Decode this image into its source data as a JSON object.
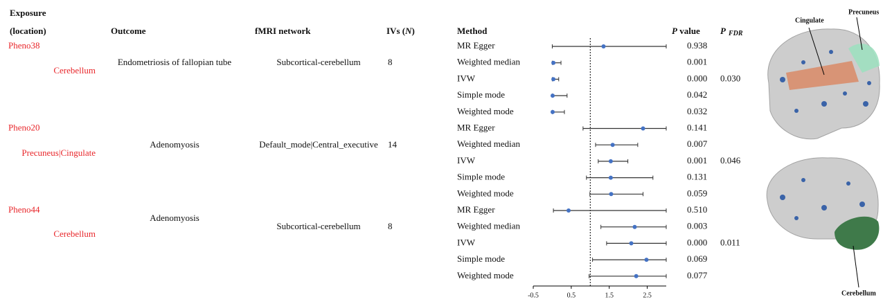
{
  "table": {
    "headers": {
      "exposure": "Exposure",
      "location": "(location)",
      "outcome": "Outcome",
      "network": "fMRI network",
      "ivs": [
        "IVs (",
        "N",
        ")"
      ],
      "method": "Method",
      "p_value": [
        "P",
        " value"
      ],
      "p_fdr": [
        "P",
        "FDR"
      ]
    },
    "groups": [
      {
        "exposure": "Pheno38",
        "location": "Cerebellum",
        "outcome": "Endometriosis of fallopian tube",
        "network": "Subcortical-cerebellum",
        "ivs": 8,
        "p_values": [
          "0.938",
          "0.001",
          "0.000",
          "0.042",
          "0.032"
        ],
        "p_fdr": "0.030"
      },
      {
        "exposure": "Pheno20",
        "location": "Precuneus|Cingulate",
        "outcome": "Adenomyosis",
        "network": "Default_mode|Central_executive",
        "ivs": 14,
        "p_values": [
          "0.141",
          "0.007",
          "0.001",
          "0.131",
          "0.059"
        ],
        "p_fdr": "0.046"
      },
      {
        "exposure": "Pheno44",
        "location": "Cerebellum",
        "outcome": "Adenomyosis",
        "network": "Subcortical-cerebellum",
        "ivs": 8,
        "p_values": [
          "0.510",
          "0.003",
          "0.000",
          "0.069",
          "0.077"
        ],
        "p_fdr": "0.011"
      }
    ]
  },
  "figure_labels": {
    "cingulate": "Cingulate",
    "precuneus": "Precuneus",
    "cerebellum": "Cerebellum"
  },
  "chart_data": {
    "type": "forest",
    "categories": [
      "MR Egger",
      "Weighted median",
      "IVW",
      "Simple mode",
      "Weighted mode",
      "MR Egger",
      "Weighted median",
      "IVW",
      "Simple mode",
      "Weighted mode",
      "MR Egger",
      "Weighted median",
      "IVW",
      "Simple mode",
      "Weighted mode"
    ],
    "estimates": [
      1.35,
      0.03,
      0.03,
      0.01,
      0.01,
      2.39,
      1.59,
      1.54,
      1.54,
      1.55,
      0.43,
      2.17,
      2.08,
      2.48,
      2.21
    ],
    "lower": [
      0,
      0,
      0,
      0,
      0,
      0.81,
      1.14,
      1.21,
      0.9,
      0.99,
      0.03,
      1.28,
      1.43,
      1.06,
      0.97
    ],
    "upper": [
      3.0,
      0.23,
      0.17,
      0.39,
      0.32,
      3.0,
      2.25,
      1.99,
      2.65,
      2.39,
      3.0,
      3.0,
      3.0,
      3.0,
      3.0
    ],
    "xlim": [
      -0.5,
      3.0
    ],
    "xticks": [
      -0.5,
      0.5,
      1.5,
      2.5
    ],
    "reference_line": 1,
    "point_color": "#4472c4",
    "line_color": "#333333"
  }
}
